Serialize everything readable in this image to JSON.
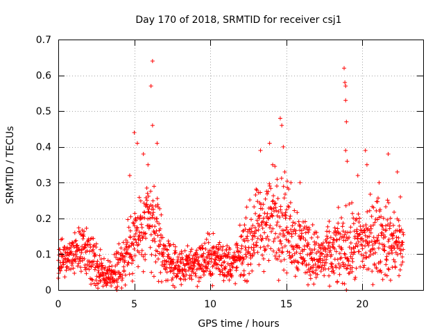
{
  "chart_data": {
    "type": "scatter",
    "title": "Day 170 of 2018, SRMTID for receiver csj1",
    "xlabel": "GPS time / hours",
    "ylabel": "SRMTID / TECUs",
    "xlim": [
      0,
      24
    ],
    "ylim": [
      0,
      0.7
    ],
    "x_ticks": [
      0,
      5,
      10,
      15,
      20
    ],
    "y_ticks": [
      0,
      0.1,
      0.2,
      0.3,
      0.4,
      0.5,
      0.6,
      0.7
    ],
    "x_tick_labels": [
      "0",
      "5",
      "10",
      "15",
      "20"
    ],
    "y_tick_labels": [
      "0",
      "0.1",
      "0.2",
      "0.3",
      "0.4",
      "0.5",
      "0.6",
      "0.7"
    ],
    "grid": true,
    "marker": "+",
    "color": "#ff0000",
    "series": [
      {
        "name": "SRMTID",
        "profile": {
          "x": [
            0,
            0.5,
            1,
            1.5,
            2,
            2.5,
            3,
            3.5,
            4,
            4.5,
            5,
            5.5,
            6,
            6.5,
            7,
            7.5,
            8,
            8.5,
            9,
            9.5,
            10,
            10.5,
            11,
            11.5,
            12,
            12.5,
            13,
            13.5,
            14,
            14.5,
            15,
            15.5,
            16,
            16.5,
            17,
            17.5,
            18,
            18.5,
            19,
            19.5,
            20,
            20.5,
            21,
            21.5,
            22,
            22.5,
            22.7
          ],
          "median": [
            0.08,
            0.09,
            0.1,
            0.11,
            0.1,
            0.07,
            0.04,
            0.04,
            0.06,
            0.1,
            0.14,
            0.16,
            0.18,
            0.16,
            0.09,
            0.07,
            0.06,
            0.07,
            0.08,
            0.08,
            0.09,
            0.09,
            0.08,
            0.07,
            0.1,
            0.13,
            0.16,
            0.18,
            0.2,
            0.2,
            0.18,
            0.15,
            0.13,
            0.11,
            0.09,
            0.09,
            0.1,
            0.11,
            0.12,
            0.12,
            0.13,
            0.14,
            0.15,
            0.14,
            0.13,
            0.12,
            0.11
          ],
          "spread": [
            0.04,
            0.04,
            0.05,
            0.06,
            0.06,
            0.05,
            0.04,
            0.04,
            0.05,
            0.07,
            0.09,
            0.1,
            0.11,
            0.1,
            0.05,
            0.04,
            0.04,
            0.04,
            0.05,
            0.05,
            0.05,
            0.05,
            0.05,
            0.04,
            0.06,
            0.08,
            0.09,
            0.1,
            0.11,
            0.11,
            0.1,
            0.09,
            0.08,
            0.07,
            0.06,
            0.06,
            0.07,
            0.08,
            0.09,
            0.08,
            0.09,
            0.09,
            0.09,
            0.09,
            0.08,
            0.08,
            0.07
          ]
        },
        "points_per_hour": 70,
        "peaks": [
          [
            5.0,
            0.44
          ],
          [
            5.2,
            0.41
          ],
          [
            5.6,
            0.38
          ],
          [
            5.9,
            0.35
          ],
          [
            6.1,
            0.57
          ],
          [
            6.2,
            0.64
          ],
          [
            6.2,
            0.46
          ],
          [
            6.5,
            0.41
          ],
          [
            6.3,
            0.29
          ],
          [
            4.7,
            0.32
          ],
          [
            13.3,
            0.39
          ],
          [
            13.9,
            0.41
          ],
          [
            14.1,
            0.35
          ],
          [
            14.6,
            0.48
          ],
          [
            14.7,
            0.46
          ],
          [
            14.8,
            0.4
          ],
          [
            14.9,
            0.33
          ],
          [
            15.3,
            0.3
          ],
          [
            15.9,
            0.3
          ],
          [
            18.8,
            0.62
          ],
          [
            18.85,
            0.58
          ],
          [
            18.9,
            0.57
          ],
          [
            18.9,
            0.53
          ],
          [
            18.95,
            0.47
          ],
          [
            18.9,
            0.39
          ],
          [
            19.0,
            0.36
          ],
          [
            20.2,
            0.39
          ],
          [
            20.3,
            0.35
          ],
          [
            19.7,
            0.32
          ],
          [
            21.1,
            0.3
          ],
          [
            21.7,
            0.38
          ],
          [
            22.3,
            0.33
          ],
          [
            22.5,
            0.26
          ]
        ]
      }
    ]
  }
}
